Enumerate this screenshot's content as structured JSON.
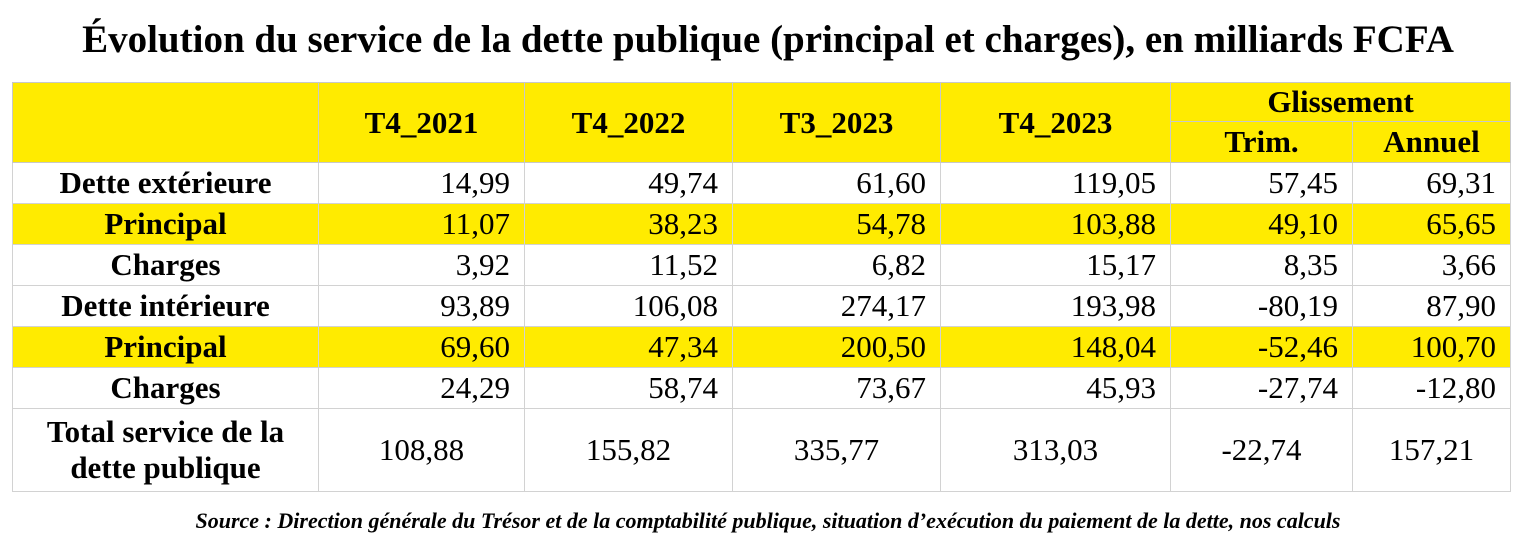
{
  "title": "Évolution du service de la dette publique (principal et charges), en milliards FCFA",
  "table": {
    "columns": [
      "T4_2021",
      "T4_2022",
      "T3_2023",
      "T4_2023"
    ],
    "group_header": "Glissement",
    "sub_columns": [
      "Trim.",
      "Annuel"
    ],
    "rows": [
      {
        "label": "Dette extérieure",
        "values": [
          "14,99",
          "49,74",
          "61,60",
          "119,05",
          "57,45",
          "69,31"
        ]
      },
      {
        "label": "Principal",
        "values": [
          "11,07",
          "38,23",
          "54,78",
          "103,88",
          "49,10",
          "65,65"
        ]
      },
      {
        "label": "Charges",
        "values": [
          "3,92",
          "11,52",
          "6,82",
          "15,17",
          "8,35",
          "3,66"
        ]
      },
      {
        "label": "Dette intérieure",
        "values": [
          "93,89",
          "106,08",
          "274,17",
          "193,98",
          "-80,19",
          "87,90"
        ]
      },
      {
        "label": "Principal",
        "values": [
          "69,60",
          "47,34",
          "200,50",
          "148,04",
          "-52,46",
          "100,70"
        ]
      },
      {
        "label": "Charges",
        "values": [
          "24,29",
          "58,74",
          "73,67",
          "45,93",
          "-27,74",
          "-12,80"
        ]
      },
      {
        "label": "Total service de la dette publique",
        "values": [
          "108,88",
          "155,82",
          "335,77",
          "313,03",
          "-22,74",
          "157,21"
        ]
      }
    ]
  },
  "source": "Source : Direction générale du Trésor et de la comptabilité publique, situation d’exécution du paiement de la dette, nos calculs",
  "colors": {
    "highlight": "#ffeb00"
  }
}
